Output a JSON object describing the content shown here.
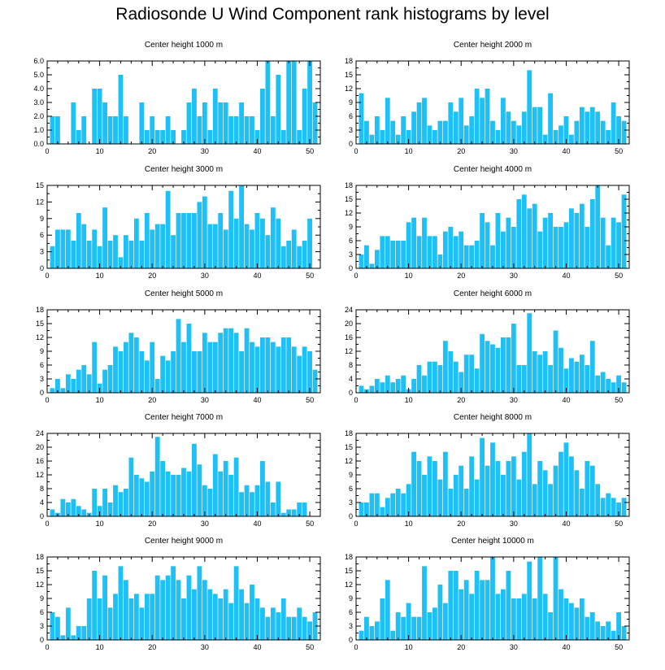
{
  "title": "Radiosonde U Wind Component rank histograms by level",
  "colors": {
    "bar": "#1ec0f5",
    "axis": "#000000",
    "background": "#ffffff"
  },
  "chart_data": [
    {
      "type": "bar",
      "title": "Center height 1000 m",
      "xlabel": "",
      "ylabel": "",
      "xlim": [
        0,
        52
      ],
      "ylim": [
        0,
        6
      ],
      "xticks": [
        0,
        10,
        20,
        30,
        40,
        50
      ],
      "yticks": [
        0,
        1,
        2,
        3,
        4,
        5,
        6
      ],
      "ytick_labels": [
        "0.0",
        "1.0",
        "2.0",
        "3.0",
        "4.0",
        "5.0",
        "6.0"
      ],
      "categories": [
        1,
        2,
        3,
        4,
        5,
        6,
        7,
        8,
        9,
        10,
        11,
        12,
        13,
        14,
        15,
        16,
        17,
        18,
        19,
        20,
        21,
        22,
        23,
        24,
        25,
        26,
        27,
        28,
        29,
        30,
        31,
        32,
        33,
        34,
        35,
        36,
        37,
        38,
        39,
        40,
        41,
        42,
        43,
        44,
        45,
        46,
        47,
        48,
        49,
        50,
        51
      ],
      "values": [
        2,
        2,
        0,
        0,
        3,
        1,
        2,
        0,
        4,
        4,
        3,
        2,
        2,
        5,
        2,
        0,
        0,
        3,
        1,
        2,
        1,
        1,
        2,
        1,
        0,
        1,
        3,
        4,
        2,
        3,
        1,
        4,
        3,
        3,
        2,
        2,
        3,
        2,
        2,
        1,
        4,
        6,
        2,
        5,
        1,
        6,
        6,
        1,
        4,
        6,
        3
      ]
    },
    {
      "type": "bar",
      "title": "Center height 2000 m",
      "xlabel": "",
      "ylabel": "",
      "xlim": [
        0,
        52
      ],
      "ylim": [
        0,
        18
      ],
      "xticks": [
        0,
        10,
        20,
        30,
        40,
        50
      ],
      "yticks": [
        0,
        3,
        6,
        9,
        12,
        15,
        18
      ],
      "ytick_labels": [
        "0",
        "3",
        "6",
        "9",
        "12",
        "15",
        "18"
      ],
      "categories": [
        1,
        2,
        3,
        4,
        5,
        6,
        7,
        8,
        9,
        10,
        11,
        12,
        13,
        14,
        15,
        16,
        17,
        18,
        19,
        20,
        21,
        22,
        23,
        24,
        25,
        26,
        27,
        28,
        29,
        30,
        31,
        32,
        33,
        34,
        35,
        36,
        37,
        38,
        39,
        40,
        41,
        42,
        43,
        44,
        45,
        46,
        47,
        48,
        49,
        50,
        51
      ],
      "values": [
        11,
        5,
        2,
        6,
        3,
        10,
        5,
        2,
        6,
        3,
        7,
        9,
        10,
        4,
        3,
        5,
        5,
        9,
        7,
        10,
        4,
        6,
        12,
        10,
        12,
        5,
        3,
        10,
        7,
        5,
        4,
        7,
        16,
        8,
        8,
        2,
        11,
        3,
        4,
        6,
        2,
        5,
        8,
        7,
        8,
        7,
        5,
        3,
        9,
        6,
        5
      ]
    },
    {
      "type": "bar",
      "title": "Center height 3000 m",
      "xlabel": "",
      "ylabel": "",
      "xlim": [
        0,
        52
      ],
      "ylim": [
        0,
        15
      ],
      "xticks": [
        0,
        10,
        20,
        30,
        40,
        50
      ],
      "yticks": [
        0,
        3,
        6,
        9,
        12,
        15
      ],
      "ytick_labels": [
        "0",
        "3",
        "6",
        "9",
        "12",
        "15"
      ],
      "categories": [
        1,
        2,
        3,
        4,
        5,
        6,
        7,
        8,
        9,
        10,
        11,
        12,
        13,
        14,
        15,
        16,
        17,
        18,
        19,
        20,
        21,
        22,
        23,
        24,
        25,
        26,
        27,
        28,
        29,
        30,
        31,
        32,
        33,
        34,
        35,
        36,
        37,
        38,
        39,
        40,
        41,
        42,
        43,
        44,
        45,
        46,
        47,
        48,
        49,
        50,
        51
      ],
      "values": [
        4,
        7,
        7,
        7,
        5,
        10,
        8,
        5,
        7,
        4,
        11,
        5,
        6,
        2,
        6,
        5,
        9,
        5,
        10,
        7,
        8,
        8,
        14,
        6,
        10,
        10,
        10,
        10,
        12,
        13,
        8,
        8,
        10,
        7,
        14,
        9,
        15,
        8,
        7,
        10,
        9,
        6,
        11,
        9,
        4,
        5,
        7,
        4,
        5,
        9,
        0
      ]
    },
    {
      "type": "bar",
      "title": "Center height 4000 m",
      "xlabel": "",
      "ylabel": "",
      "xlim": [
        0,
        52
      ],
      "ylim": [
        0,
        18
      ],
      "xticks": [
        0,
        10,
        20,
        30,
        40,
        50
      ],
      "yticks": [
        0,
        3,
        6,
        9,
        12,
        15,
        18
      ],
      "ytick_labels": [
        "0",
        "3",
        "6",
        "9",
        "12",
        "15",
        "18"
      ],
      "categories": [
        1,
        2,
        3,
        4,
        5,
        6,
        7,
        8,
        9,
        10,
        11,
        12,
        13,
        14,
        15,
        16,
        17,
        18,
        19,
        20,
        21,
        22,
        23,
        24,
        25,
        26,
        27,
        28,
        29,
        30,
        31,
        32,
        33,
        34,
        35,
        36,
        37,
        38,
        39,
        40,
        41,
        42,
        43,
        44,
        45,
        46,
        47,
        48,
        49,
        50,
        51
      ],
      "values": [
        3,
        5,
        1,
        4,
        7,
        7,
        6,
        6,
        6,
        10,
        11,
        7,
        11,
        7,
        7,
        3,
        8,
        9,
        7,
        8,
        5,
        5,
        6,
        12,
        10,
        5,
        12,
        8,
        11,
        9,
        15,
        16,
        13,
        14,
        8,
        11,
        12,
        9,
        9,
        10,
        13,
        12,
        14,
        9,
        15,
        18,
        11,
        5,
        11,
        10,
        16
      ]
    },
    {
      "type": "bar",
      "title": "Center height 5000 m",
      "xlabel": "",
      "ylabel": "",
      "xlim": [
        0,
        52
      ],
      "ylim": [
        0,
        18
      ],
      "xticks": [
        0,
        10,
        20,
        30,
        40,
        50
      ],
      "yticks": [
        0,
        3,
        6,
        9,
        12,
        15,
        18
      ],
      "ytick_labels": [
        "0",
        "3",
        "6",
        "9",
        "12",
        "15",
        "18"
      ],
      "categories": [
        1,
        2,
        3,
        4,
        5,
        6,
        7,
        8,
        9,
        10,
        11,
        12,
        13,
        14,
        15,
        16,
        17,
        18,
        19,
        20,
        21,
        22,
        23,
        24,
        25,
        26,
        27,
        28,
        29,
        30,
        31,
        32,
        33,
        34,
        35,
        36,
        37,
        38,
        39,
        40,
        41,
        42,
        43,
        44,
        45,
        46,
        47,
        48,
        49,
        50,
        51
      ],
      "values": [
        1,
        3,
        1,
        4,
        3,
        5,
        6,
        4,
        11,
        2,
        5,
        6,
        10,
        9,
        11,
        13,
        12,
        9,
        7,
        11,
        3,
        8,
        7,
        9,
        16,
        11,
        15,
        9,
        9,
        13,
        11,
        11,
        13,
        14,
        14,
        13,
        9,
        14,
        11,
        10,
        12,
        12,
        11,
        10,
        12,
        12,
        10,
        8,
        10,
        9,
        5
      ]
    },
    {
      "type": "bar",
      "title": "Center height 6000 m",
      "xlabel": "",
      "ylabel": "",
      "xlim": [
        0,
        52
      ],
      "ylim": [
        0,
        24
      ],
      "xticks": [
        0,
        10,
        20,
        30,
        40,
        50
      ],
      "yticks": [
        0,
        4,
        8,
        12,
        16,
        20,
        24
      ],
      "ytick_labels": [
        "0",
        "4",
        "8",
        "12",
        "16",
        "20",
        "24"
      ],
      "categories": [
        1,
        2,
        3,
        4,
        5,
        6,
        7,
        8,
        9,
        10,
        11,
        12,
        13,
        14,
        15,
        16,
        17,
        18,
        19,
        20,
        21,
        22,
        23,
        24,
        25,
        26,
        27,
        28,
        29,
        30,
        31,
        32,
        33,
        34,
        35,
        36,
        37,
        38,
        39,
        40,
        41,
        42,
        43,
        44,
        45,
        46,
        47,
        48,
        49,
        50,
        51
      ],
      "values": [
        2,
        1,
        2,
        4,
        3,
        5,
        3,
        4,
        5,
        1,
        4,
        8,
        5,
        9,
        9,
        8,
        15,
        12,
        9,
        6,
        11,
        11,
        7,
        17,
        15,
        14,
        13,
        16,
        16,
        20,
        8,
        8,
        23,
        12,
        11,
        12,
        8,
        18,
        13,
        7,
        10,
        9,
        11,
        8,
        15,
        5,
        6,
        4,
        3,
        5,
        3
      ]
    },
    {
      "type": "bar",
      "title": "Center height 7000 m",
      "xlabel": "",
      "ylabel": "",
      "xlim": [
        0,
        52
      ],
      "ylim": [
        0,
        24
      ],
      "xticks": [
        0,
        10,
        20,
        30,
        40,
        50
      ],
      "yticks": [
        0,
        4,
        8,
        12,
        16,
        20,
        24
      ],
      "ytick_labels": [
        "0",
        "4",
        "8",
        "12",
        "16",
        "20",
        "24"
      ],
      "categories": [
        1,
        2,
        3,
        4,
        5,
        6,
        7,
        8,
        9,
        10,
        11,
        12,
        13,
        14,
        15,
        16,
        17,
        18,
        19,
        20,
        21,
        22,
        23,
        24,
        25,
        26,
        27,
        28,
        29,
        30,
        31,
        32,
        33,
        34,
        35,
        36,
        37,
        38,
        39,
        40,
        41,
        42,
        43,
        44,
        45,
        46,
        47,
        48,
        49,
        50,
        51
      ],
      "values": [
        2,
        1,
        5,
        4,
        5,
        3,
        2,
        1,
        8,
        3,
        8,
        4,
        9,
        7,
        8,
        17,
        12,
        11,
        10,
        13,
        23,
        16,
        13,
        12,
        12,
        14,
        13,
        21,
        15,
        9,
        8,
        18,
        13,
        16,
        12,
        17,
        7,
        9,
        7,
        9,
        16,
        10,
        4,
        10,
        1,
        2,
        2,
        4,
        4,
        0,
        0
      ]
    },
    {
      "type": "bar",
      "title": "Center height 8000 m",
      "xlabel": "",
      "ylabel": "",
      "xlim": [
        0,
        52
      ],
      "ylim": [
        0,
        18
      ],
      "xticks": [
        0,
        10,
        20,
        30,
        40,
        50
      ],
      "yticks": [
        0,
        3,
        6,
        9,
        12,
        15,
        18
      ],
      "ytick_labels": [
        "0",
        "3",
        "6",
        "9",
        "12",
        "15",
        "18"
      ],
      "categories": [
        1,
        2,
        3,
        4,
        5,
        6,
        7,
        8,
        9,
        10,
        11,
        12,
        13,
        14,
        15,
        16,
        17,
        18,
        19,
        20,
        21,
        22,
        23,
        24,
        25,
        26,
        27,
        28,
        29,
        30,
        31,
        32,
        33,
        34,
        35,
        36,
        37,
        38,
        39,
        40,
        41,
        42,
        43,
        44,
        45,
        46,
        47,
        48,
        49,
        50,
        51
      ],
      "values": [
        3,
        3,
        5,
        5,
        2,
        4,
        5,
        6,
        5,
        7,
        14,
        12,
        9,
        13,
        12,
        8,
        14,
        6,
        9,
        11,
        6,
        13,
        8,
        17,
        11,
        16,
        12,
        9,
        12,
        13,
        8,
        14,
        18,
        7,
        12,
        10,
        7,
        11,
        14,
        16,
        13,
        10,
        6,
        12,
        11,
        7,
        4,
        5,
        4,
        3,
        4
      ]
    },
    {
      "type": "bar",
      "title": "Center height 9000 m",
      "xlabel": "",
      "ylabel": "",
      "xlim": [
        0,
        52
      ],
      "ylim": [
        0,
        18
      ],
      "xticks": [
        0,
        10,
        20,
        30,
        40,
        50
      ],
      "yticks": [
        0,
        3,
        6,
        9,
        12,
        15,
        18
      ],
      "ytick_labels": [
        "0",
        "3",
        "6",
        "9",
        "12",
        "15",
        "18"
      ],
      "categories": [
        1,
        2,
        3,
        4,
        5,
        6,
        7,
        8,
        9,
        10,
        11,
        12,
        13,
        14,
        15,
        16,
        17,
        18,
        19,
        20,
        21,
        22,
        23,
        24,
        25,
        26,
        27,
        28,
        29,
        30,
        31,
        32,
        33,
        34,
        35,
        36,
        37,
        38,
        39,
        40,
        41,
        42,
        43,
        44,
        45,
        46,
        47,
        48,
        49,
        50,
        51
      ],
      "values": [
        6,
        5,
        1,
        7,
        1,
        3,
        3,
        9,
        15,
        9,
        14,
        7,
        10,
        16,
        13,
        9,
        10,
        7,
        10,
        10,
        14,
        13,
        14,
        16,
        13,
        9,
        14,
        11,
        16,
        13,
        11,
        10,
        9,
        11,
        8,
        16,
        11,
        8,
        12,
        9,
        7,
        5,
        7,
        6,
        9,
        5,
        5,
        7,
        5,
        4,
        6
      ]
    },
    {
      "type": "bar",
      "title": "Center height 10000 m",
      "xlabel": "",
      "ylabel": "",
      "xlim": [
        0,
        52
      ],
      "ylim": [
        0,
        18
      ],
      "xticks": [
        0,
        10,
        20,
        30,
        40,
        50
      ],
      "yticks": [
        0,
        3,
        6,
        9,
        12,
        15,
        18
      ],
      "ytick_labels": [
        "0",
        "3",
        "6",
        "9",
        "12",
        "15",
        "18"
      ],
      "categories": [
        1,
        2,
        3,
        4,
        5,
        6,
        7,
        8,
        9,
        10,
        11,
        12,
        13,
        14,
        15,
        16,
        17,
        18,
        19,
        20,
        21,
        22,
        23,
        24,
        25,
        26,
        27,
        28,
        29,
        30,
        31,
        32,
        33,
        34,
        35,
        36,
        37,
        38,
        39,
        40,
        41,
        42,
        43,
        44,
        45,
        46,
        47,
        48,
        49,
        50,
        51
      ],
      "values": [
        2,
        5,
        3,
        4,
        9,
        13,
        2,
        6,
        5,
        8,
        5,
        5,
        16,
        6,
        7,
        12,
        8,
        15,
        15,
        11,
        13,
        10,
        15,
        13,
        13,
        18,
        10,
        11,
        15,
        9,
        9,
        10,
        17,
        9,
        18,
        10,
        6,
        18,
        11,
        9,
        8,
        7,
        9,
        5,
        6,
        4,
        3,
        4,
        2,
        6,
        3
      ]
    }
  ]
}
